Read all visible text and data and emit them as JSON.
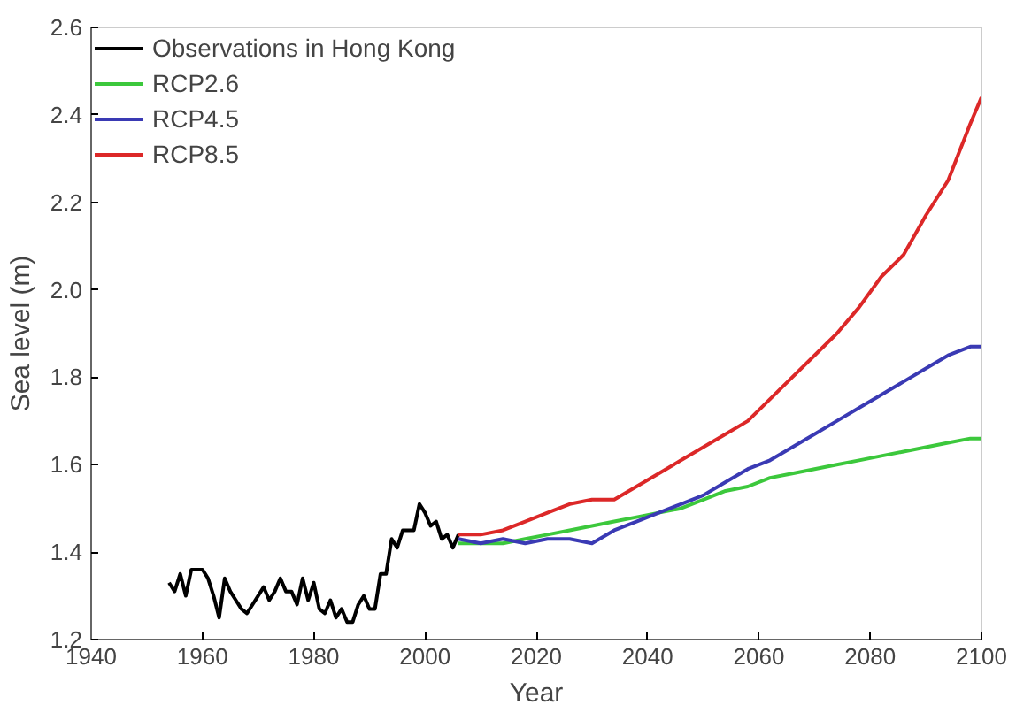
{
  "chart_data": {
    "type": "line",
    "xlabel": "Year",
    "ylabel": "Sea level (m)",
    "xlim": [
      1940,
      2100
    ],
    "xticks": [
      1940,
      1960,
      1980,
      2000,
      2020,
      2040,
      2060,
      2080,
      2100
    ],
    "ylim": [
      1.2,
      2.6
    ],
    "yticks": [
      1.2,
      1.4,
      1.6,
      1.8,
      {
        "value": 2,
        "label": "2.0"
      },
      2.2,
      2.4,
      2.6
    ],
    "grid": false,
    "legend": "top left",
    "marker": "none",
    "line_style": "solid",
    "series": [
      {
        "name": "Observations in Hong Kong",
        "color": "#000000",
        "x": [
          1954,
          1955,
          1956,
          1957,
          1958,
          1959,
          1960,
          1961,
          1962,
          1963,
          1964,
          1965,
          1966,
          1967,
          1968,
          1969,
          1970,
          1971,
          1972,
          1973,
          1974,
          1975,
          1976,
          1977,
          1978,
          1979,
          1980,
          1981,
          1982,
          1983,
          1984,
          1985,
          1986,
          1987,
          1988,
          1989,
          1990,
          1991,
          1992,
          1993,
          1994,
          1995,
          1996,
          1997,
          1998,
          1999,
          2000,
          2001,
          2002,
          2003,
          2004,
          2005,
          2006
        ],
        "values": [
          1.33,
          1.31,
          1.35,
          1.3,
          1.36,
          1.36,
          1.36,
          1.34,
          1.3,
          1.25,
          1.34,
          1.31,
          1.29,
          1.27,
          1.26,
          1.28,
          1.3,
          1.32,
          1.29,
          1.31,
          1.34,
          1.31,
          1.31,
          1.28,
          1.34,
          1.29,
          1.33,
          1.27,
          1.26,
          1.29,
          1.25,
          1.27,
          1.24,
          1.24,
          1.28,
          1.3,
          1.27,
          1.27,
          1.35,
          1.35,
          1.43,
          1.41,
          1.45,
          1.45,
          1.45,
          1.51,
          1.49,
          1.46,
          1.47,
          1.43,
          1.44,
          1.41,
          1.44
        ]
      },
      {
        "name": "RCP2.6",
        "color": "#3cc83c",
        "x": [
          2006,
          2010,
          2014,
          2018,
          2022,
          2026,
          2030,
          2034,
          2038,
          2042,
          2046,
          2050,
          2054,
          2058,
          2062,
          2066,
          2070,
          2074,
          2078,
          2082,
          2086,
          2090,
          2094,
          2098,
          2100
        ],
        "values": [
          1.42,
          1.42,
          1.42,
          1.43,
          1.44,
          1.45,
          1.46,
          1.47,
          1.48,
          1.49,
          1.5,
          1.52,
          1.54,
          1.55,
          1.57,
          1.58,
          1.59,
          1.6,
          1.61,
          1.62,
          1.63,
          1.64,
          1.65,
          1.66,
          1.66
        ]
      },
      {
        "name": "RCP4.5",
        "color": "#3a3ab4",
        "x": [
          2006,
          2010,
          2014,
          2018,
          2022,
          2026,
          2030,
          2034,
          2038,
          2042,
          2046,
          2050,
          2054,
          2058,
          2062,
          2066,
          2070,
          2074,
          2078,
          2082,
          2086,
          2090,
          2094,
          2098,
          2100
        ],
        "values": [
          1.43,
          1.42,
          1.43,
          1.42,
          1.43,
          1.43,
          1.42,
          1.45,
          1.47,
          1.49,
          1.51,
          1.53,
          1.56,
          1.59,
          1.61,
          1.64,
          1.67,
          1.7,
          1.73,
          1.76,
          1.79,
          1.82,
          1.85,
          1.87,
          1.87
        ]
      },
      {
        "name": "RCP8.5",
        "color": "#dc2828",
        "x": [
          2006,
          2010,
          2014,
          2018,
          2022,
          2026,
          2030,
          2034,
          2038,
          2042,
          2046,
          2050,
          2054,
          2058,
          2062,
          2066,
          2070,
          2074,
          2078,
          2082,
          2086,
          2090,
          2094,
          2098,
          2100
        ],
        "values": [
          1.44,
          1.44,
          1.45,
          1.47,
          1.49,
          1.51,
          1.52,
          1.52,
          1.55,
          1.58,
          1.61,
          1.64,
          1.67,
          1.7,
          1.75,
          1.8,
          1.85,
          1.9,
          1.96,
          2.03,
          2.08,
          2.17,
          2.25,
          2.38,
          2.44
        ]
      }
    ]
  }
}
